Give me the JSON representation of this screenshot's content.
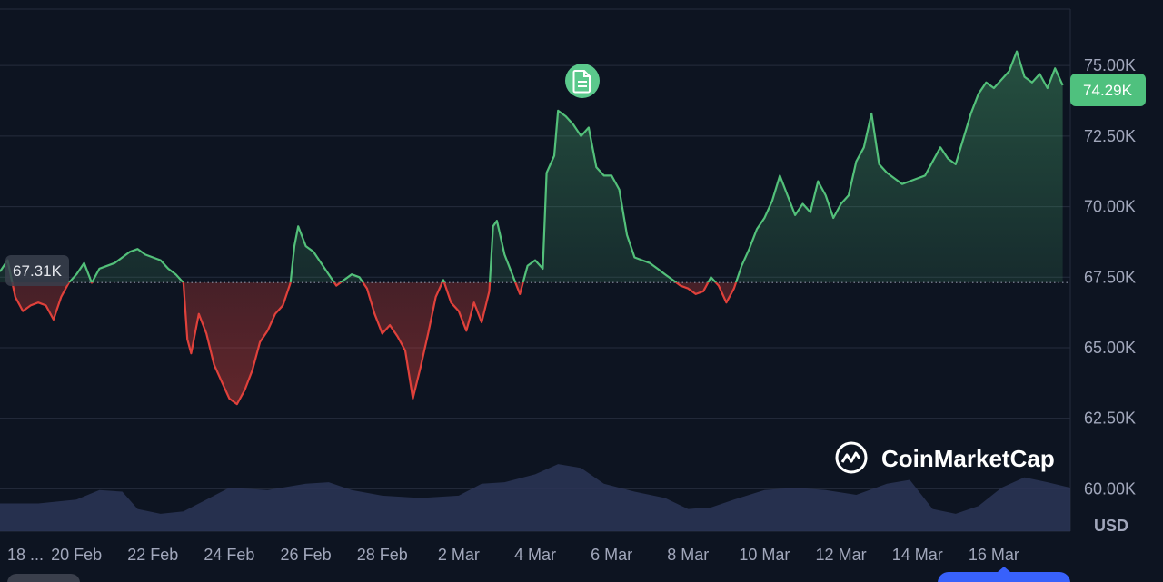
{
  "chart_data": {
    "type": "area",
    "baseline": 67.31,
    "baseline_label": "67.31K",
    "current_label": "74.29K",
    "unit_label": "USD",
    "watermark": "CoinMarketCap",
    "ylim": [
      58.5,
      77.0
    ],
    "yticks": [
      {
        "value": 75.0,
        "label": "75.00K"
      },
      {
        "value": 72.5,
        "label": "72.50K"
      },
      {
        "value": 70.0,
        "label": "70.00K"
      },
      {
        "value": 67.5,
        "label": "67.50K"
      },
      {
        "value": 65.0,
        "label": "65.00K"
      },
      {
        "value": 62.5,
        "label": "62.50K"
      },
      {
        "value": 60.0,
        "label": "60.00K"
      }
    ],
    "xlim": [
      0,
      28
    ],
    "xticks": [
      {
        "t": 0.1,
        "label": "18 ..."
      },
      {
        "t": 2.0,
        "label": "20 Feb"
      },
      {
        "t": 4.0,
        "label": "22 Feb"
      },
      {
        "t": 6.0,
        "label": "24 Feb"
      },
      {
        "t": 8.0,
        "label": "26 Feb"
      },
      {
        "t": 10.0,
        "label": "28 Feb"
      },
      {
        "t": 12.0,
        "label": "2 Mar"
      },
      {
        "t": 14.0,
        "label": "4 Mar"
      },
      {
        "t": 16.0,
        "label": "6 Mar"
      },
      {
        "t": 18.0,
        "label": "8 Mar"
      },
      {
        "t": 20.0,
        "label": "10 Mar"
      },
      {
        "t": 22.0,
        "label": "12 Mar"
      },
      {
        "t": 24.0,
        "label": "14 Mar"
      },
      {
        "t": 26.0,
        "label": "16 Mar"
      }
    ],
    "price": [
      [
        0.0,
        67.7
      ],
      [
        0.2,
        68.1
      ],
      [
        0.4,
        66.8
      ],
      [
        0.6,
        66.3
      ],
      [
        0.8,
        66.5
      ],
      [
        1.0,
        66.6
      ],
      [
        1.2,
        66.5
      ],
      [
        1.4,
        66.0
      ],
      [
        1.6,
        66.8
      ],
      [
        1.8,
        67.3
      ],
      [
        2.0,
        67.6
      ],
      [
        2.2,
        68.0
      ],
      [
        2.4,
        67.3
      ],
      [
        2.6,
        67.8
      ],
      [
        2.8,
        67.9
      ],
      [
        3.0,
        68.0
      ],
      [
        3.2,
        68.2
      ],
      [
        3.4,
        68.4
      ],
      [
        3.6,
        68.5
      ],
      [
        3.8,
        68.3
      ],
      [
        4.0,
        68.2
      ],
      [
        4.2,
        68.1
      ],
      [
        4.4,
        67.8
      ],
      [
        4.6,
        67.6
      ],
      [
        4.8,
        67.3
      ],
      [
        4.9,
        65.3
      ],
      [
        5.0,
        64.8
      ],
      [
        5.2,
        66.2
      ],
      [
        5.4,
        65.5
      ],
      [
        5.6,
        64.4
      ],
      [
        5.8,
        63.8
      ],
      [
        6.0,
        63.2
      ],
      [
        6.2,
        63.0
      ],
      [
        6.4,
        63.5
      ],
      [
        6.6,
        64.2
      ],
      [
        6.8,
        65.2
      ],
      [
        7.0,
        65.6
      ],
      [
        7.2,
        66.2
      ],
      [
        7.4,
        66.5
      ],
      [
        7.6,
        67.3
      ],
      [
        7.7,
        68.6
      ],
      [
        7.8,
        69.3
      ],
      [
        8.0,
        68.6
      ],
      [
        8.2,
        68.4
      ],
      [
        8.4,
        68.0
      ],
      [
        8.6,
        67.6
      ],
      [
        8.8,
        67.2
      ],
      [
        9.0,
        67.4
      ],
      [
        9.2,
        67.6
      ],
      [
        9.4,
        67.5
      ],
      [
        9.6,
        67.1
      ],
      [
        9.8,
        66.2
      ],
      [
        10.0,
        65.5
      ],
      [
        10.2,
        65.8
      ],
      [
        10.4,
        65.4
      ],
      [
        10.6,
        64.9
      ],
      [
        10.8,
        63.2
      ],
      [
        11.0,
        64.3
      ],
      [
        11.2,
        65.5
      ],
      [
        11.4,
        66.8
      ],
      [
        11.6,
        67.4
      ],
      [
        11.8,
        66.6
      ],
      [
        12.0,
        66.3
      ],
      [
        12.2,
        65.6
      ],
      [
        12.4,
        66.6
      ],
      [
        12.6,
        65.9
      ],
      [
        12.8,
        67.0
      ],
      [
        12.9,
        69.3
      ],
      [
        13.0,
        69.5
      ],
      [
        13.2,
        68.3
      ],
      [
        13.4,
        67.6
      ],
      [
        13.6,
        66.9
      ],
      [
        13.8,
        67.9
      ],
      [
        14.0,
        68.1
      ],
      [
        14.2,
        67.8
      ],
      [
        14.3,
        71.2
      ],
      [
        14.5,
        71.8
      ],
      [
        14.6,
        73.4
      ],
      [
        14.8,
        73.2
      ],
      [
        15.0,
        72.9
      ],
      [
        15.2,
        72.5
      ],
      [
        15.4,
        72.8
      ],
      [
        15.6,
        71.4
      ],
      [
        15.8,
        71.1
      ],
      [
        16.0,
        71.1
      ],
      [
        16.2,
        70.6
      ],
      [
        16.4,
        69.0
      ],
      [
        16.6,
        68.2
      ],
      [
        16.8,
        68.1
      ],
      [
        17.0,
        68.0
      ],
      [
        17.2,
        67.8
      ],
      [
        17.4,
        67.6
      ],
      [
        17.6,
        67.4
      ],
      [
        17.8,
        67.2
      ],
      [
        18.0,
        67.1
      ],
      [
        18.2,
        66.9
      ],
      [
        18.4,
        67.0
      ],
      [
        18.6,
        67.5
      ],
      [
        18.8,
        67.2
      ],
      [
        19.0,
        66.6
      ],
      [
        19.2,
        67.1
      ],
      [
        19.4,
        67.9
      ],
      [
        19.6,
        68.5
      ],
      [
        19.8,
        69.2
      ],
      [
        20.0,
        69.6
      ],
      [
        20.2,
        70.2
      ],
      [
        20.4,
        71.1
      ],
      [
        20.6,
        70.4
      ],
      [
        20.8,
        69.7
      ],
      [
        21.0,
        70.1
      ],
      [
        21.2,
        69.8
      ],
      [
        21.4,
        70.9
      ],
      [
        21.6,
        70.4
      ],
      [
        21.8,
        69.6
      ],
      [
        22.0,
        70.1
      ],
      [
        22.2,
        70.4
      ],
      [
        22.4,
        71.6
      ],
      [
        22.6,
        72.1
      ],
      [
        22.8,
        73.3
      ],
      [
        23.0,
        71.5
      ],
      [
        23.2,
        71.2
      ],
      [
        23.4,
        71.0
      ],
      [
        23.6,
        70.8
      ],
      [
        23.8,
        70.9
      ],
      [
        24.0,
        71.0
      ],
      [
        24.2,
        71.1
      ],
      [
        24.4,
        71.6
      ],
      [
        24.6,
        72.1
      ],
      [
        24.8,
        71.7
      ],
      [
        25.0,
        71.5
      ],
      [
        25.2,
        72.4
      ],
      [
        25.4,
        73.3
      ],
      [
        25.6,
        74.0
      ],
      [
        25.8,
        74.4
      ],
      [
        26.0,
        74.2
      ],
      [
        26.2,
        74.5
      ],
      [
        26.4,
        74.8
      ],
      [
        26.6,
        75.5
      ],
      [
        26.8,
        74.6
      ],
      [
        27.0,
        74.4
      ],
      [
        27.2,
        74.7
      ],
      [
        27.4,
        74.2
      ],
      [
        27.6,
        74.9
      ],
      [
        27.8,
        74.3
      ]
    ],
    "volume": [
      [
        0.0,
        0.35
      ],
      [
        1.0,
        0.35
      ],
      [
        2.0,
        0.4
      ],
      [
        2.6,
        0.52
      ],
      [
        3.2,
        0.5
      ],
      [
        3.6,
        0.28
      ],
      [
        4.2,
        0.22
      ],
      [
        4.8,
        0.25
      ],
      [
        5.4,
        0.4
      ],
      [
        6.0,
        0.55
      ],
      [
        7.0,
        0.52
      ],
      [
        8.0,
        0.6
      ],
      [
        8.6,
        0.62
      ],
      [
        9.2,
        0.52
      ],
      [
        10.0,
        0.45
      ],
      [
        11.0,
        0.42
      ],
      [
        12.0,
        0.45
      ],
      [
        12.6,
        0.6
      ],
      [
        13.2,
        0.62
      ],
      [
        14.0,
        0.72
      ],
      [
        14.6,
        0.85
      ],
      [
        15.2,
        0.8
      ],
      [
        15.8,
        0.6
      ],
      [
        16.6,
        0.5
      ],
      [
        17.4,
        0.42
      ],
      [
        18.0,
        0.28
      ],
      [
        18.6,
        0.3
      ],
      [
        19.2,
        0.4
      ],
      [
        20.0,
        0.52
      ],
      [
        20.8,
        0.55
      ],
      [
        21.6,
        0.52
      ],
      [
        22.4,
        0.46
      ],
      [
        23.2,
        0.6
      ],
      [
        23.8,
        0.65
      ],
      [
        24.4,
        0.28
      ],
      [
        25.0,
        0.22
      ],
      [
        25.6,
        0.32
      ],
      [
        26.2,
        0.55
      ],
      [
        26.8,
        0.68
      ],
      [
        27.4,
        0.62
      ],
      [
        28.0,
        0.55
      ]
    ]
  },
  "colors": {
    "up": "#53c07a",
    "down": "#e0413b",
    "volume": "#2b3556",
    "grid": "#252c3d",
    "badge_up_bg": "#4fc17e",
    "badge_neutral_bg": "#3a3f4c",
    "marker_bg": "#5bc98c",
    "icon_fg": "#ffffff",
    "background": "#0d1421"
  },
  "icons": {
    "event_marker": "document-icon",
    "watermark_logo": "coinmarketcap-logo-icon"
  }
}
